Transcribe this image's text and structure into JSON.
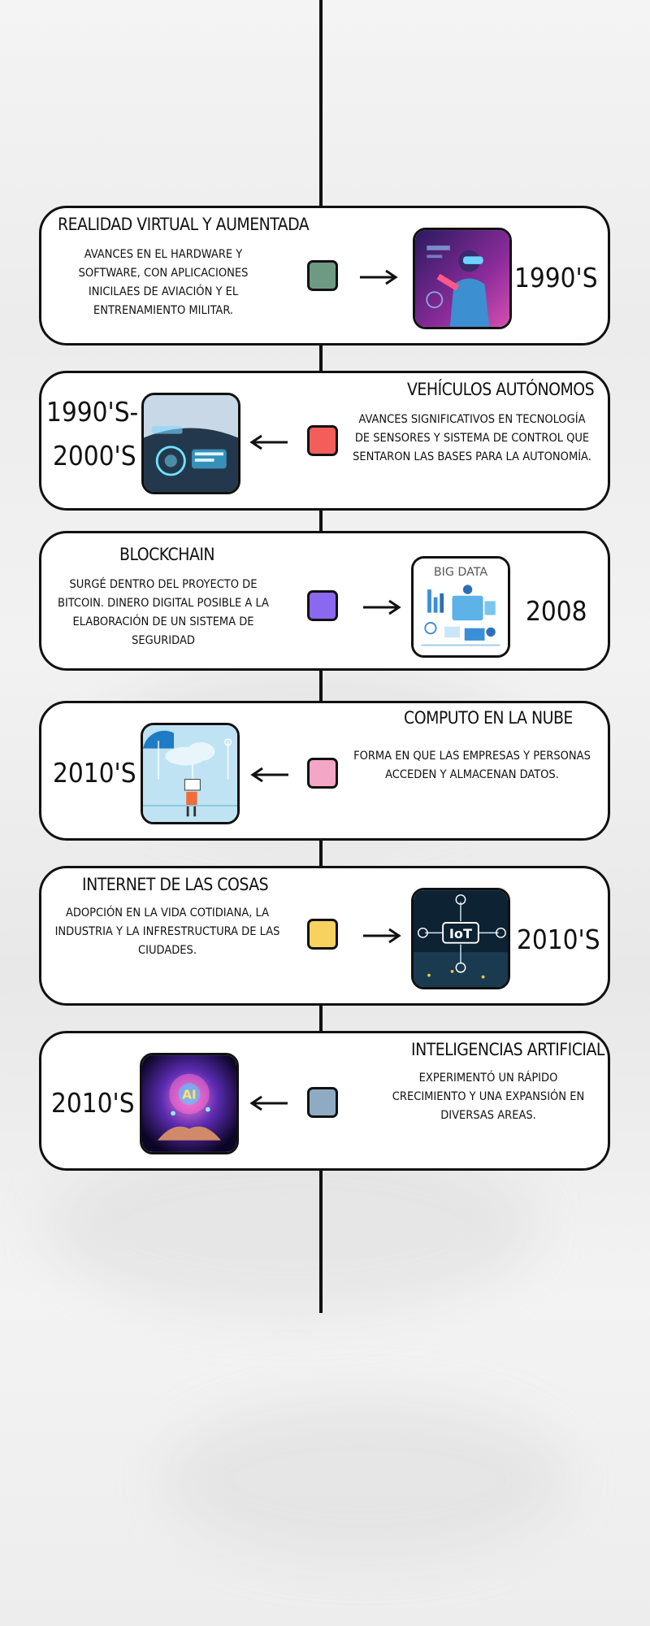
{
  "events": [
    {
      "title": "REALIDAD VIRTUAL Y AUMENTADA",
      "description": "AVANCES EN EL HARDWARE Y SOFTWARE, CON APLICACIONES INICILAES DE AVIACIÓN Y EL ENTRENAMIENTO MILITAR.",
      "year": "1990'S",
      "marker_color": "#6e9a83",
      "image_icon": "vr-headset-icon"
    },
    {
      "title": "VEHÍCULOS AUTÓNOMOS",
      "description": "AVANCES SIGNIFICATIVOS EN TECNOLOGÍA DE SENSORES Y SISTEMA DE CONTROL QUE SENTARON LAS BASES PARA LA AUTONOMÍA.",
      "year_line1": "1990'S-",
      "year_line2": "2000'S",
      "marker_color": "#f35e5b",
      "image_icon": "car-dashboard-icon"
    },
    {
      "title": "BLOCKCHAIN",
      "description": "SURGÉ DENTRO DEL PROYECTO DE BITCOIN. DINERO DIGITAL POSIBLE A LA ELABORACIÓN DE UN SISTEMA DE SEGURIDAD",
      "year": "2008",
      "image_label": "BIG DATA",
      "marker_color": "#8a68f0",
      "image_icon": "big-data-icon"
    },
    {
      "title": "COMPUTO EN LA NUBE",
      "description": "FORMA EN QUE LAS EMPRESAS Y PERSONAS ACCEDEN Y ALMACENAN DATOS.",
      "year": "2010'S",
      "marker_color": "#f3a6c6",
      "image_icon": "cloud-computing-icon"
    },
    {
      "title": "INTERNET DE LAS COSAS",
      "description": "ADOPCIÓN EN LA VIDA COTIDIANA, LA INDUSTRIA Y LA INFRESTRUCTURA DE LAS CIUDADES.",
      "year": "2010'S",
      "image_label": "IoT",
      "marker_color": "#f7d25e",
      "image_icon": "iot-icon"
    },
    {
      "title": "INTELIGENCIAS ARTIFICIAL",
      "description": "EXPERIMENTÓ UN RÁPIDO CRECIMIENTO Y UNA EXPANSIÓN EN DIVERSAS AREAS.",
      "year": "2010'S",
      "image_label": "AI",
      "marker_color": "#8faac3",
      "image_icon": "ai-hands-icon"
    }
  ]
}
